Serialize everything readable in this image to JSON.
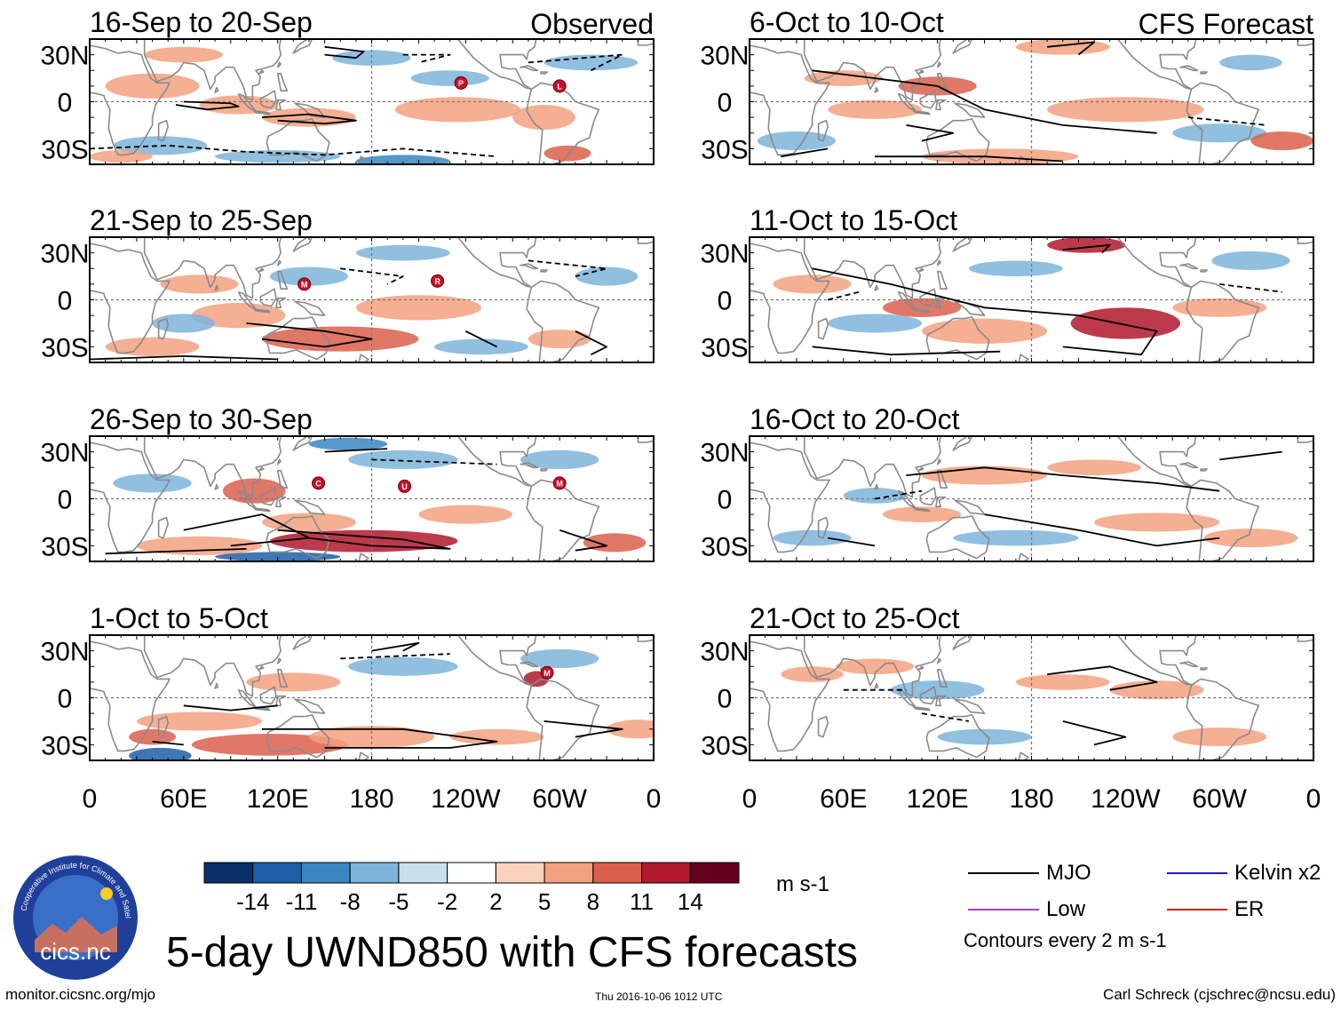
{
  "panels": {
    "observed": [
      {
        "date_range": "16-Sep to 20-Sep",
        "corner_label": "Observed",
        "storms": [
          {
            "letter": "P",
            "lon": 237,
            "lat": 12
          },
          {
            "letter": "L",
            "lon": 300,
            "lat": 10
          }
        ]
      },
      {
        "date_range": "21-Sep to 25-Sep",
        "corner_label": "",
        "storms": [
          {
            "letter": "M",
            "lon": 137,
            "lat": 10
          },
          {
            "letter": "R",
            "lon": 222,
            "lat": 12
          }
        ]
      },
      {
        "date_range": "26-Sep to 30-Sep",
        "corner_label": "",
        "storms": [
          {
            "letter": "C",
            "lon": 146,
            "lat": 10
          },
          {
            "letter": "U",
            "lon": 201,
            "lat": 8
          },
          {
            "letter": "M",
            "lon": 300,
            "lat": 10
          }
        ]
      },
      {
        "date_range": "1-Oct to 5-Oct",
        "corner_label": "",
        "storms": [
          {
            "letter": "M",
            "lon": 292,
            "lat": 16
          }
        ]
      }
    ],
    "forecast": [
      {
        "date_range": "6-Oct to 10-Oct",
        "corner_label": "CFS Forecast",
        "storms": []
      },
      {
        "date_range": "11-Oct to 15-Oct",
        "corner_label": "",
        "storms": []
      },
      {
        "date_range": "16-Oct to 20-Oct",
        "corner_label": "",
        "storms": []
      },
      {
        "date_range": "21-Oct to 25-Oct",
        "corner_label": "",
        "storms": []
      }
    ]
  },
  "axes": {
    "lat_labels": [
      "30N",
      "0",
      "30S"
    ],
    "lat_values": [
      30,
      0,
      -30
    ],
    "lon_labels": [
      "0",
      "60E",
      "120E",
      "180",
      "120W",
      "60W",
      "0"
    ],
    "lon_values": [
      0,
      60,
      120,
      180,
      240,
      300,
      360
    ]
  },
  "colorbar": {
    "tick_labels": [
      "-14",
      "-11",
      "-8",
      "-5",
      "-2",
      "2",
      "5",
      "8",
      "11",
      "14"
    ],
    "colors": [
      "#08306b",
      "#1d5fa8",
      "#3a86c2",
      "#7cb4da",
      "#c8e0ee",
      "#ffffff",
      "#fbd3bc",
      "#f3a17f",
      "#dc5f4c",
      "#b0182c",
      "#67001f"
    ],
    "units": "m s-1"
  },
  "contour_legend": {
    "items": [
      {
        "label": "MJO",
        "color": "#000000"
      },
      {
        "label": "Kelvin x2",
        "color": "#1c1ccc"
      },
      {
        "label": "Low",
        "color": "#a640e0"
      },
      {
        "label": "ER",
        "color": "#e01010"
      }
    ],
    "note": "Contours every 2 m s-1"
  },
  "title": "5-day UWND850 with CFS forecasts",
  "footer": {
    "website": "monitor.cicsnc.org/mjo",
    "timestamp": "Thu 2016-10-06 1012 UTC",
    "author": "Carl Schreck (cjschrec@ncsu.edu)"
  },
  "logo": {
    "ring_text": "Cooperative Institute for Climate and Satellites",
    "name": "cics.nc"
  },
  "colors": {
    "land_outline": "#8a8a8a",
    "frame": "#000000",
    "zero_line": "#777777",
    "storm_marker": "#c8102e"
  }
}
